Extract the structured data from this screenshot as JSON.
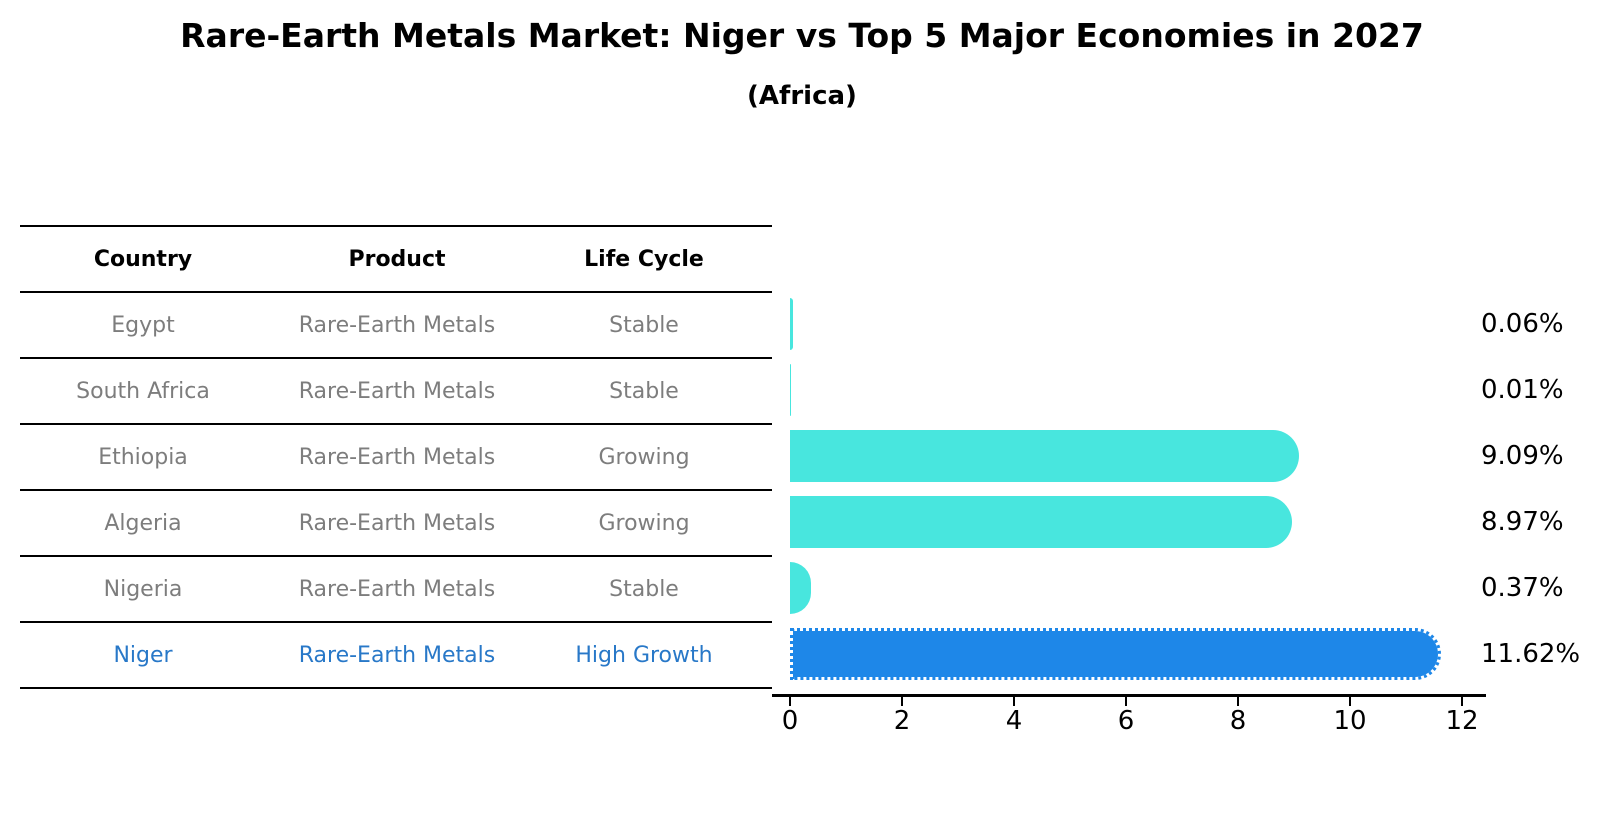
{
  "title": "Rare-Earth Metals Market: Niger vs Top 5 Major Economies in 2027",
  "subtitle": "(Africa)",
  "table": {
    "headers": [
      "Country",
      "Product",
      "Life Cycle"
    ],
    "rows": [
      {
        "country": "Egypt",
        "product": "Rare-Earth Metals",
        "life_cycle": "Stable",
        "highlight": false
      },
      {
        "country": "South Africa",
        "product": "Rare-Earth Metals",
        "life_cycle": "Stable",
        "highlight": false
      },
      {
        "country": "Ethiopia",
        "product": "Rare-Earth Metals",
        "life_cycle": "Growing",
        "highlight": false
      },
      {
        "country": "Algeria",
        "product": "Rare-Earth Metals",
        "life_cycle": "Growing",
        "highlight": false
      },
      {
        "country": "Nigeria",
        "product": "Rare-Earth Metals",
        "life_cycle": "Stable",
        "highlight": false
      },
      {
        "country": "Niger",
        "product": "Rare-Earth Metals",
        "life_cycle": "High Growth",
        "highlight": true
      }
    ]
  },
  "chart_data": {
    "type": "bar",
    "orientation": "horizontal",
    "title": "Rare-Earth Metals Market: Niger vs Top 5 Major Economies in 2027",
    "subtitle": "(Africa)",
    "categories": [
      "Egypt",
      "South Africa",
      "Ethiopia",
      "Algeria",
      "Nigeria",
      "Niger"
    ],
    "values": [
      0.06,
      0.01,
      9.09,
      8.97,
      0.37,
      11.62
    ],
    "value_labels": [
      "0.06%",
      "0.01%",
      "9.09%",
      "8.97%",
      "0.37%",
      "11.62%"
    ],
    "xlabel": "",
    "ylabel": "",
    "xlim": [
      0,
      12
    ],
    "xticks": [
      0,
      2,
      4,
      6,
      8,
      10,
      12
    ],
    "grid": false,
    "legend": false,
    "value_label_position": "right",
    "bar_color": "#48e6de",
    "highlight_bar_color": "#1e87e8",
    "highlight_index": 5,
    "row_text_color": "#7d7d7d",
    "highlight_text_color": "#2878c8"
  }
}
